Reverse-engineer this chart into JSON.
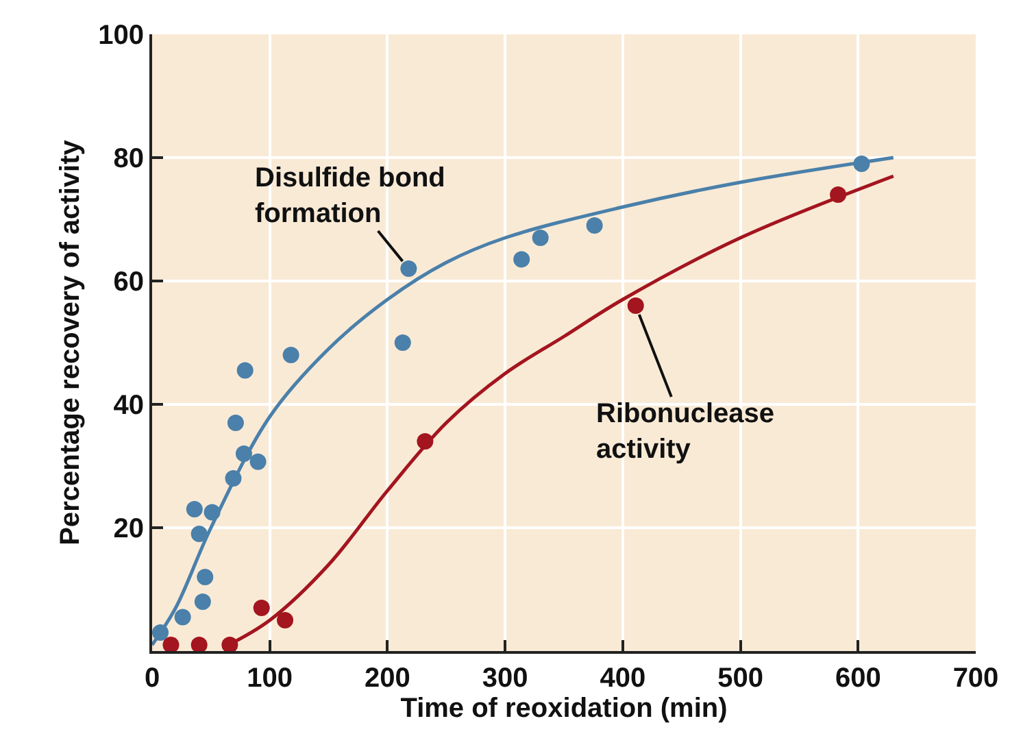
{
  "chart_data": {
    "type": "scatter",
    "xlabel": "Time of reoxidation (min)",
    "ylabel": "Percentage recovery of activity",
    "xlim": [
      0,
      700
    ],
    "xticks": [
      0,
      100,
      200,
      300,
      400,
      500,
      600,
      700
    ],
    "ylim": [
      0,
      100
    ],
    "yticks": [
      20,
      40,
      60,
      80,
      100
    ],
    "grid": true,
    "marker": "circle",
    "series": [
      {
        "type": "scatter",
        "name": "Disulfide bond formation",
        "color": "#4a80aa",
        "x": [
          7,
          26,
          36,
          40,
          43,
          45,
          51,
          69,
          71,
          79,
          78,
          90,
          118,
          213,
          218,
          314,
          330,
          376,
          603
        ],
        "values": [
          3,
          5.5,
          23,
          19,
          8,
          12,
          22.5,
          28,
          37,
          45.5,
          32,
          30.7,
          48,
          50,
          62,
          63.5,
          67,
          69,
          79
        ]
      },
      {
        "type": "scatter",
        "name": "Ribonuclease activity",
        "color": "#a3151f",
        "x": [
          16,
          40,
          66,
          93,
          113,
          232,
          411,
          583
        ],
        "values": [
          1,
          1,
          1,
          7,
          5,
          34,
          56,
          74
        ]
      },
      {
        "type": "line",
        "marker": "none",
        "color": "#4a80aa",
        "line_style": "solid",
        "x": [
          0,
          20,
          50,
          100,
          150,
          200,
          250,
          300,
          400,
          500,
          630
        ],
        "values": [
          1,
          7,
          20,
          38,
          49,
          57,
          63,
          67,
          72,
          76,
          80
        ]
      },
      {
        "type": "line",
        "marker": "none",
        "color": "#a3151f",
        "line_style": "solid",
        "x": [
          65,
          100,
          150,
          200,
          250,
          300,
          350,
          400,
          500,
          630
        ],
        "values": [
          1,
          5,
          14,
          26,
          37,
          45,
          51,
          57,
          67,
          77
        ]
      }
    ]
  }
}
